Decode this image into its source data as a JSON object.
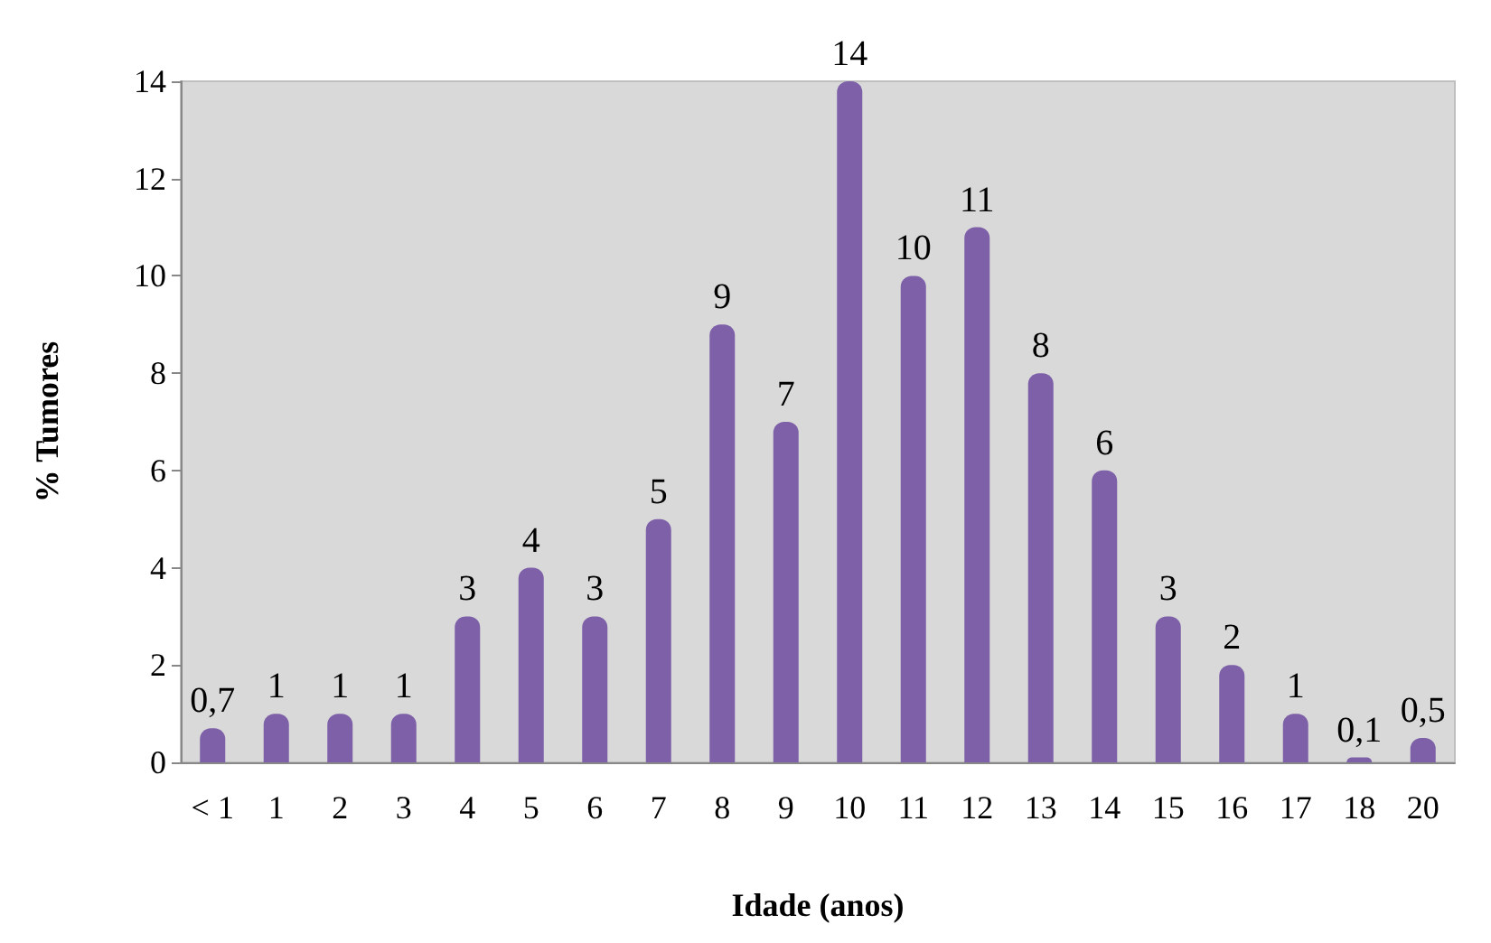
{
  "chart_data": {
    "type": "bar",
    "categories": [
      "< 1",
      "1",
      "2",
      "3",
      "4",
      "5",
      "6",
      "7",
      "8",
      "9",
      "10",
      "11",
      "12",
      "13",
      "14",
      "15",
      "16",
      "17",
      "18",
      "20"
    ],
    "values": [
      0.7,
      1,
      1,
      1,
      3,
      4,
      3,
      5,
      9,
      7,
      14,
      10,
      11,
      8,
      6,
      3,
      2,
      1,
      0.1,
      0.5
    ],
    "value_labels": [
      "0,7",
      "1",
      "1",
      "1",
      "3",
      "4",
      "3",
      "5",
      "9",
      "7",
      "14",
      "10",
      "11",
      "8",
      "6",
      "3",
      "2",
      "1",
      "0,1",
      "0,5"
    ],
    "color": "#7d60a8",
    "xlabel": "Idade (anos)",
    "ylabel": "% Tumores",
    "ylim": [
      0,
      14
    ],
    "yticks": [
      0,
      2,
      4,
      6,
      8,
      10,
      12,
      14
    ],
    "grid": false
  }
}
